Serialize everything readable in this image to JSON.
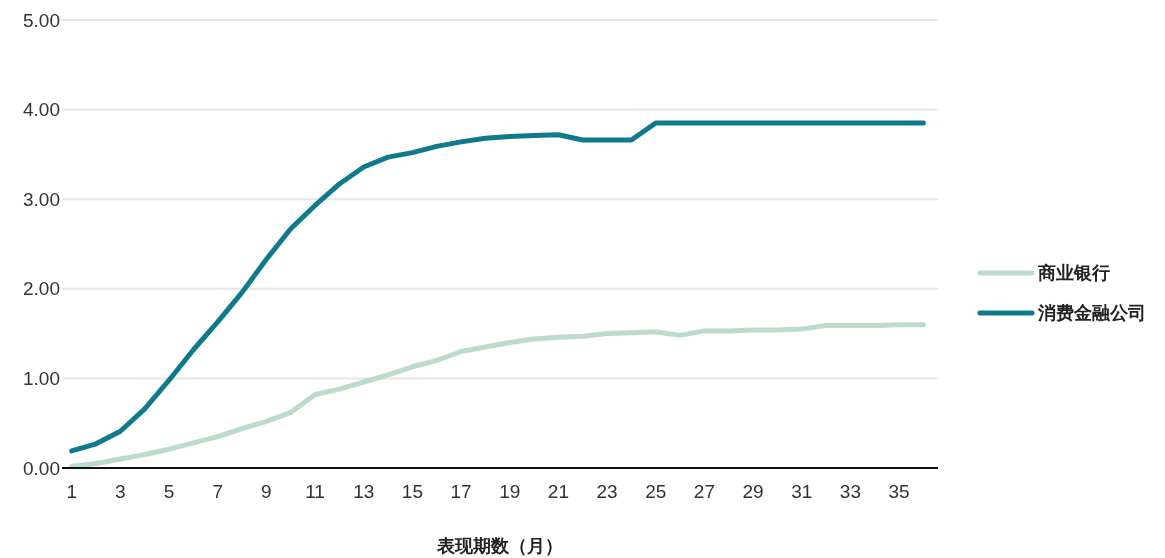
{
  "chart_data": {
    "type": "line",
    "xlabel": "表现期数（月）",
    "x": [
      1,
      2,
      3,
      4,
      5,
      6,
      7,
      8,
      9,
      10,
      11,
      12,
      13,
      14,
      15,
      16,
      17,
      18,
      19,
      20,
      21,
      22,
      23,
      24,
      25,
      26,
      27,
      28,
      29,
      30,
      31,
      32,
      33,
      34,
      35,
      36
    ],
    "xlim": [
      0.6,
      36.6
    ],
    "xticks": [
      1,
      3,
      5,
      7,
      9,
      11,
      13,
      15,
      17,
      19,
      21,
      23,
      25,
      27,
      29,
      31,
      33,
      35
    ],
    "ylim": [
      0,
      5
    ],
    "yticks": [
      {
        "value": 0,
        "label": "0.00"
      },
      {
        "value": 1,
        "label": "1.00"
      },
      {
        "value": 2,
        "label": "2.00"
      },
      {
        "value": 3,
        "label": "3.00"
      },
      {
        "value": 4,
        "label": "4.00"
      },
      {
        "value": 5,
        "label": "5.00"
      }
    ],
    "grid": "y",
    "legend": "right",
    "marker": "none",
    "line_style": "solid",
    "series": [
      {
        "name": "商业银行",
        "color": "#bddbca",
        "values": [
          0.02,
          0.05,
          0.1,
          0.15,
          0.21,
          0.28,
          0.35,
          0.44,
          0.52,
          0.62,
          0.82,
          0.88,
          0.96,
          1.04,
          1.13,
          1.2,
          1.3,
          1.35,
          1.4,
          1.44,
          1.46,
          1.47,
          1.5,
          1.51,
          1.52,
          1.48,
          1.53,
          1.53,
          1.54,
          1.54,
          1.55,
          1.59,
          1.59,
          1.59,
          1.6,
          1.6
        ]
      },
      {
        "name": "消费金融公司",
        "color": "#0e7a8c",
        "values": [
          0.19,
          0.27,
          0.41,
          0.66,
          0.98,
          1.32,
          1.63,
          1.96,
          2.33,
          2.67,
          2.93,
          3.17,
          3.36,
          3.47,
          3.52,
          3.59,
          3.64,
          3.68,
          3.7,
          3.71,
          3.72,
          3.66,
          3.66,
          3.66,
          3.85,
          3.85,
          3.85,
          3.85,
          3.85,
          3.85,
          3.85,
          3.85,
          3.85,
          3.85,
          3.85,
          3.85
        ]
      }
    ]
  }
}
